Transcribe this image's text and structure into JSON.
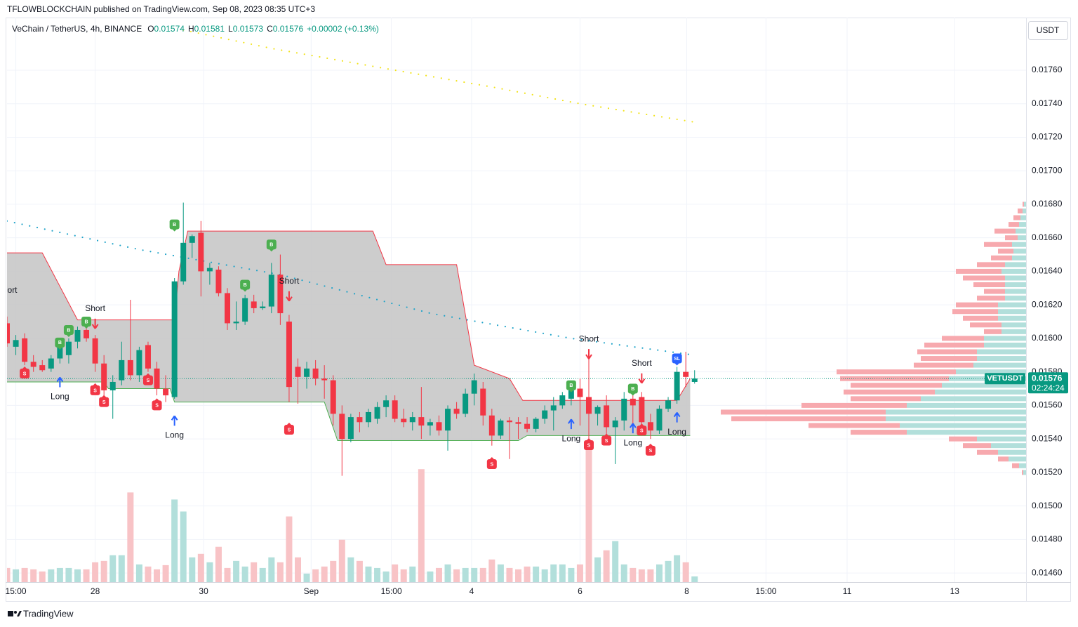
{
  "header": {
    "text": "TFLOWBLOCKCHAIN published on TradingView.com, Sep 08, 2023 08:35 UTC+3"
  },
  "footer": {
    "brand": "TradingView"
  },
  "chart_data": {
    "type": "candlestick",
    "title": "VeChain / TetherUS, 4h, BINANCE",
    "legend_ohlc": [
      {
        "key": "O",
        "value": "0.01574"
      },
      {
        "key": "H",
        "value": "0.01581"
      },
      {
        "key": "L",
        "value": "0.01573"
      },
      {
        "key": "C",
        "value": "0.01576"
      }
    ],
    "change": "+0.00002 (+0.13%)",
    "currency_button": "USDT",
    "xlim": [
      0,
      115.6
    ],
    "xticks": [
      {
        "value": 1,
        "label": "15:00"
      },
      {
        "value": 10,
        "label": "28"
      },
      {
        "value": 22.3,
        "label": "30"
      },
      {
        "value": 34.5,
        "label": "Sep"
      },
      {
        "value": 43.6,
        "label": "15:00"
      },
      {
        "value": 52.7,
        "label": "4"
      },
      {
        "value": 65,
        "label": "6"
      },
      {
        "value": 77.1,
        "label": "8"
      },
      {
        "value": 86.1,
        "label": "15:00"
      },
      {
        "value": 95.3,
        "label": "11"
      },
      {
        "value": 107.5,
        "label": "13"
      }
    ],
    "ylim": [
      0.014546,
      0.017914
    ],
    "yticks": [
      {
        "value": 0.0176,
        "label": "0.01760"
      },
      {
        "value": 0.0174,
        "label": "0.01740"
      },
      {
        "value": 0.0172,
        "label": "0.01720"
      },
      {
        "value": 0.017,
        "label": "0.01700"
      },
      {
        "value": 0.0168,
        "label": "0.01680"
      },
      {
        "value": 0.0166,
        "label": "0.01660"
      },
      {
        "value": 0.0164,
        "label": "0.01640"
      },
      {
        "value": 0.0162,
        "label": "0.01620"
      },
      {
        "value": 0.016,
        "label": "0.01600"
      },
      {
        "value": 0.0158,
        "label": "0.01580"
      },
      {
        "value": 0.0156,
        "label": "0.01560"
      },
      {
        "value": 0.0154,
        "label": "0.01540"
      },
      {
        "value": 0.0152,
        "label": "0.01520"
      },
      {
        "value": 0.015,
        "label": "0.01500"
      },
      {
        "value": 0.0148,
        "label": "0.01480"
      },
      {
        "value": 0.0146,
        "label": "0.01460"
      }
    ],
    "grid": true,
    "up_color": "#089981",
    "down_color": "#f23645",
    "open": [
      0.01609,
      0.01595,
      0.016,
      0.01586,
      0.01584,
      0.01582,
      0.01588,
      0.0159,
      0.01598,
      0.01605,
      0.016,
      0.01585,
      0.01569,
      0.01575,
      0.01587,
      0.01578,
      0.01596,
      0.01582,
      0.0157,
      0.01565,
      0.01634,
      0.01657,
      0.01663,
      0.0164,
      0.01641,
      0.01627,
      0.01609,
      0.0161,
      0.01622,
      0.01618,
      0.01619,
      0.01638,
      0.0161,
      0.01583,
      0.01577,
      0.01582,
      0.01576,
      0.01575,
      0.01555,
      0.0154,
      0.01553,
      0.0155,
      0.01552,
      0.01559,
      0.01563,
      0.01552,
      0.0155,
      0.01553,
      0.01548,
      0.0155,
      0.01545,
      0.01558,
      0.01555,
      0.01567,
      0.0157,
      0.01554,
      0.01542,
      0.01551,
      0.0155,
      0.01549,
      0.01546,
      0.01552,
      0.01557,
      0.0156,
      0.01564,
      0.0157,
      0.01565,
      0.01555,
      0.0156,
      0.01547,
      0.01551,
      0.01564,
      0.01565,
      0.0155,
      0.01545,
      0.01558,
      0.01563,
      0.0158,
      0.01574
    ],
    "high": [
      0.01613,
      0.01602,
      0.01603,
      0.0159,
      0.01587,
      0.0159,
      0.01598,
      0.016,
      0.01607,
      0.01609,
      0.01602,
      0.0159,
      0.01578,
      0.01598,
      0.01623,
      0.01595,
      0.01598,
      0.01586,
      0.01578,
      0.01636,
      0.01681,
      0.01662,
      0.0167,
      0.01645,
      0.01643,
      0.0163,
      0.01622,
      0.01626,
      0.01626,
      0.01622,
      0.01645,
      0.0165,
      0.01614,
      0.01588,
      0.01586,
      0.01587,
      0.01584,
      0.01578,
      0.0156,
      0.01555,
      0.01556,
      0.01558,
      0.01562,
      0.01566,
      0.01566,
      0.01558,
      0.01556,
      0.01571,
      0.01552,
      0.01554,
      0.0156,
      0.01562,
      0.0157,
      0.01579,
      0.01574,
      0.01558,
      0.01552,
      0.01553,
      0.01553,
      0.01553,
      0.01553,
      0.0156,
      0.01565,
      0.01568,
      0.01572,
      0.01576,
      0.01592,
      0.0156,
      0.01566,
      0.01553,
      0.01568,
      0.0157,
      0.01568,
      0.01555,
      0.0156,
      0.01565,
      0.01583,
      0.01592,
      0.01581
    ],
    "low": [
      0.01595,
      0.0159,
      0.01584,
      0.0158,
      0.0158,
      0.0158,
      0.01585,
      0.01585,
      0.01594,
      0.01598,
      0.0158,
      0.01566,
      0.01552,
      0.01572,
      0.01575,
      0.01574,
      0.0158,
      0.01566,
      0.01562,
      0.01564,
      0.01632,
      0.01648,
      0.01625,
      0.01632,
      0.01625,
      0.01605,
      0.01605,
      0.01608,
      0.01615,
      0.01617,
      0.01615,
      0.01608,
      0.01562,
      0.01561,
      0.0157,
      0.01572,
      0.01564,
      0.01548,
      0.01518,
      0.01538,
      0.01544,
      0.01547,
      0.01549,
      0.01553,
      0.0155,
      0.01547,
      0.01545,
      0.0154,
      0.01542,
      0.01542,
      0.01533,
      0.01552,
      0.01553,
      0.0156,
      0.01548,
      0.01536,
      0.0154,
      0.01528,
      0.0154,
      0.01544,
      0.01544,
      0.01549,
      0.01545,
      0.01558,
      0.0156,
      0.01548,
      0.01535,
      0.01548,
      0.01542,
      0.01525,
      0.01545,
      0.01548,
      0.01542,
      0.0154,
      0.01543,
      0.01556,
      0.01561,
      0.01571,
      0.01573
    ],
    "close": [
      0.01597,
      0.01599,
      0.01586,
      0.01583,
      0.01581,
      0.01588,
      0.01597,
      0.01598,
      0.01605,
      0.016,
      0.01585,
      0.01569,
      0.01574,
      0.01587,
      0.01578,
      0.01593,
      0.01582,
      0.0157,
      0.01566,
      0.01634,
      0.01657,
      0.01661,
      0.0164,
      0.01642,
      0.01627,
      0.01609,
      0.0161,
      0.01624,
      0.01618,
      0.01619,
      0.01638,
      0.01615,
      0.01571,
      0.01577,
      0.01582,
      0.01576,
      0.01575,
      0.01555,
      0.0154,
      0.01553,
      0.0155,
      0.01556,
      0.01559,
      0.01563,
      0.01552,
      0.0155,
      0.01553,
      0.01548,
      0.0155,
      0.01545,
      0.01558,
      0.01555,
      0.01567,
      0.01575,
      0.01554,
      0.01542,
      0.01551,
      0.0155,
      0.01549,
      0.01546,
      0.01552,
      0.01557,
      0.0156,
      0.01566,
      0.01569,
      0.01565,
      0.01555,
      0.01559,
      0.01547,
      0.01551,
      0.01564,
      0.0156,
      0.0155,
      0.01545,
      0.01558,
      0.01563,
      0.0158,
      0.01577,
      0.01576
    ],
    "volume": {
      "ylim": [
        0,
        800
      ],
      "up_color": "#b2dfdb",
      "down_color": "#f8c3c6",
      "values": [
        20,
        18,
        20,
        18,
        15,
        18,
        20,
        20,
        18,
        18,
        28,
        30,
        38,
        38,
        127,
        25,
        22,
        18,
        24,
        117,
        100,
        35,
        40,
        28,
        50,
        20,
        30,
        22,
        28,
        20,
        35,
        28,
        93,
        35,
        12,
        18,
        22,
        30,
        60,
        35,
        30,
        22,
        20,
        15,
        25,
        18,
        22,
        160,
        15,
        20,
        25,
        18,
        20,
        20,
        20,
        32,
        25,
        20,
        18,
        22,
        22,
        18,
        25,
        25,
        20,
        25,
        190,
        35,
        45,
        58,
        25,
        20,
        18,
        18,
        25,
        30,
        38,
        28,
        8
      ]
    },
    "band": {
      "color": "#c4c4c4",
      "upper": {
        "color": "#f23645",
        "x": [
          0,
          4,
          8,
          19,
          19.5,
          20.5,
          41.5,
          43,
          51,
          53,
          57,
          58.5,
          76,
          77.5
        ],
        "values": [
          0.01651,
          0.01651,
          0.01611,
          0.01611,
          0.0164,
          0.01664,
          0.01664,
          0.01644,
          0.01644,
          0.01584,
          0.01576,
          0.01563,
          0.01563,
          0.01576
        ]
      },
      "lower": {
        "color": "#4caf50",
        "x": [
          0,
          11,
          11.5,
          18.5,
          19,
          36,
          37.5,
          58,
          59,
          77.5
        ],
        "values": [
          0.01574,
          0.01574,
          0.0157,
          0.0157,
          0.01562,
          0.01562,
          0.01539,
          0.01539,
          0.01542,
          0.01542
        ]
      }
    },
    "series": [
      {
        "color": "#f2e31a",
        "x": [
          20,
          30,
          44,
          55,
          65,
          78
        ],
        "values": [
          0.01784,
          0.01773,
          0.0176,
          0.0175,
          0.0174,
          0.01729
        ]
      },
      {
        "color": "#1fa3c9",
        "x": [
          0,
          15,
          31,
          48,
          64,
          78
        ],
        "values": [
          0.0167,
          0.01653,
          0.01638,
          0.01615,
          0.016,
          0.0159
        ]
      }
    ],
    "signal_styles": {
      "B": {
        "color": "#4caf50",
        "point": "down"
      },
      "S": {
        "color": "#f23645",
        "point": "up"
      },
      "SL": {
        "color": "#2962ff",
        "point": "down"
      }
    },
    "signals": [
      {
        "label": "B",
        "x": 6,
        "y": 0.015975
      },
      {
        "label": "B",
        "x": 7,
        "y": 0.01605
      },
      {
        "label": "B",
        "x": 9,
        "y": 0.0161
      },
      {
        "label": "B",
        "x": 19,
        "y": 0.01668
      },
      {
        "label": "B",
        "x": 27,
        "y": 0.01632
      },
      {
        "label": "B",
        "x": 30,
        "y": 0.01656
      },
      {
        "label": "B",
        "x": 64,
        "y": 0.01572
      },
      {
        "label": "B",
        "x": 71,
        "y": 0.0157
      },
      {
        "label": "S",
        "x": 2,
        "y": 0.01579
      },
      {
        "label": "S",
        "x": 10,
        "y": 0.01569
      },
      {
        "label": "S",
        "x": 11,
        "y": 0.01562
      },
      {
        "label": "S",
        "x": 16,
        "y": 0.01575
      },
      {
        "label": "S",
        "x": 17,
        "y": 0.0156
      },
      {
        "label": "S",
        "x": 32,
        "y": 0.015455
      },
      {
        "label": "S",
        "x": 55,
        "y": 0.01525
      },
      {
        "label": "S",
        "x": 66,
        "y": 0.015363
      },
      {
        "label": "S",
        "x": 68,
        "y": 0.01539
      },
      {
        "label": "S",
        "x": 72,
        "y": 0.01545
      },
      {
        "label": "S",
        "x": 73,
        "y": 0.01533
      },
      {
        "label": "SL",
        "x": 76,
        "y": 0.01588
      }
    ],
    "arrow_colors": {
      "up": "#2962ff",
      "down": "#f23645"
    },
    "annotations": [
      {
        "text": "ort",
        "x": 0.6,
        "y": 0.016285,
        "arrow": "none"
      },
      {
        "text": "Short",
        "x": 10,
        "y": 0.016176,
        "arrow": "down"
      },
      {
        "text": "Long",
        "x": 6,
        "y": 0.01565,
        "arrow": "up"
      },
      {
        "text": "Long",
        "x": 19,
        "y": 0.01542,
        "arrow": "up"
      },
      {
        "text": "Short",
        "x": 32,
        "y": 0.01634,
        "arrow": "down"
      },
      {
        "text": "Short",
        "x": 66,
        "y": 0.015995,
        "arrow": "down"
      },
      {
        "text": "Long",
        "x": 64,
        "y": 0.0154,
        "arrow": "up"
      },
      {
        "text": "Short",
        "x": 72,
        "y": 0.01585,
        "arrow": "down"
      },
      {
        "text": "Long",
        "x": 71,
        "y": 0.015375,
        "arrow": "up"
      },
      {
        "text": "Long",
        "x": 76,
        "y": 0.01544,
        "arrow": "up"
      }
    ],
    "price_tag": {
      "symbol": "VETUSDT",
      "value": 0.01576,
      "label": "0.01576",
      "countdown": "02:24:24",
      "color": "#089981"
    },
    "profile": {
      "up_color": "#b2dfdb",
      "down_color": "#f7a9ae",
      "prices": [
        0.0168,
        0.01676,
        0.01672,
        0.01668,
        0.01664,
        0.0166,
        0.01656,
        0.01652,
        0.01648,
        0.01644,
        0.0164,
        0.01636,
        0.01632,
        0.01628,
        0.01624,
        0.0162,
        0.01616,
        0.01612,
        0.01608,
        0.01604,
        0.016,
        0.01596,
        0.01592,
        0.01588,
        0.01584,
        0.0158,
        0.01576,
        0.01572,
        0.01568,
        0.01564,
        0.0156,
        0.01556,
        0.01552,
        0.01548,
        0.01544,
        0.0154,
        0.01536,
        0.01532,
        0.01528,
        0.01524,
        0.0152
      ],
      "up": [
        3,
        5,
        8,
        10,
        15,
        12,
        20,
        18,
        20,
        30,
        35,
        30,
        30,
        30,
        30,
        40,
        40,
        40,
        35,
        35,
        60,
        60,
        70,
        70,
        75,
        100,
        110,
        120,
        130,
        150,
        170,
        200,
        200,
        180,
        170,
        70,
        50,
        40,
        25,
        10,
        4
      ],
      "down": [
        2,
        7,
        10,
        15,
        30,
        18,
        40,
        22,
        30,
        40,
        65,
        60,
        45,
        30,
        40,
        60,
        65,
        50,
        45,
        25,
        60,
        85,
        85,
        80,
        85,
        170,
        155,
        130,
        130,
        100,
        150,
        235,
        220,
        130,
        80,
        40,
        40,
        30,
        15,
        10,
        2
      ]
    }
  }
}
